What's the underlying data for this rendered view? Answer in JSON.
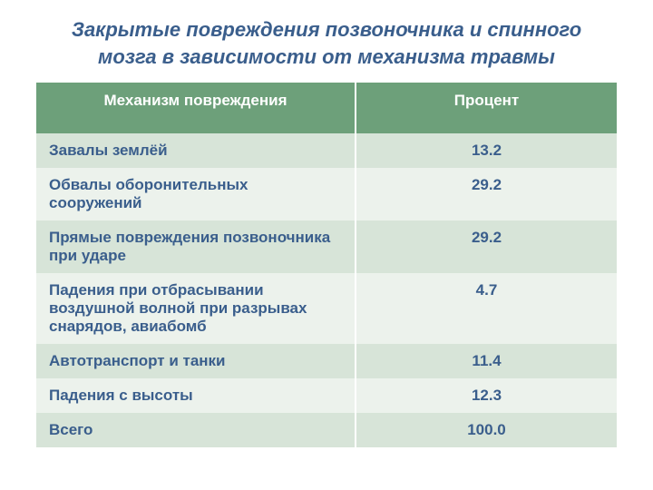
{
  "title": "Закрытые повреждения позвоночника и спинного мозга в зависимости от механизма травмы",
  "title_color": "#3a5e8c",
  "title_fontsize": 22,
  "title_fontstyle": "italic",
  "title_fontweight": "bold",
  "table": {
    "type": "table",
    "header_bg": "#6da07a",
    "header_text_color": "#ffffff",
    "header_fontsize": 17,
    "row_alt_colors": [
      "#d7e4d8",
      "#ecf2ec"
    ],
    "cell_text_color": "#3a5e8c",
    "cell_fontsize": 17,
    "cell_fontweight": "bold",
    "border_color": "#ffffff",
    "columns": [
      {
        "label": "Механизм повреждения",
        "width": "55%",
        "align": "left"
      },
      {
        "label": "Процент",
        "width": "45%",
        "align": "center"
      }
    ],
    "rows": [
      {
        "mechanism": "Завалы землёй",
        "percent": "13.2"
      },
      {
        "mechanism": "Обвалы оборонительных сооружений",
        "percent": "29.2"
      },
      {
        "mechanism": "Прямые повреждения позвоночника при ударе",
        "percent": "29.2"
      },
      {
        "mechanism": "Падения при отбрасывании воздушной волной при разрывах снарядов, авиабомб",
        "percent": "4.7"
      },
      {
        "mechanism": "Автотранспорт и танки",
        "percent": "11.4"
      },
      {
        "mechanism": "Падения с  высоты",
        "percent": "12.3"
      },
      {
        "mechanism": "Всего",
        "percent": "100.0"
      }
    ]
  }
}
